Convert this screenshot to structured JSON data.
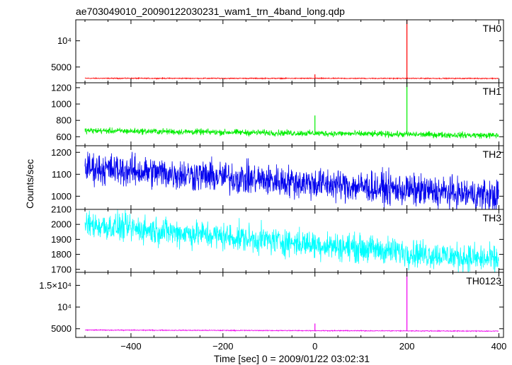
{
  "chart_data": {
    "type": "line",
    "title": "ae703049010_20090122030231_wam1_trn_4band_long.qdp",
    "xlabel": "Time [sec] 0 = 2009/01/22 03:02:31",
    "ylabel": "Counts/sec",
    "xlim": [
      -520,
      410
    ],
    "x_ticks": [
      -400,
      -200,
      0,
      200,
      400
    ],
    "x_tick_labels": [
      "−400",
      "−200",
      "0",
      "200",
      "400"
    ],
    "grid": false,
    "panels": [
      {
        "name": "TH0",
        "color": "#ff0000",
        "ylim": [
          2000,
          14000
        ],
        "y_ticks": [
          5000,
          10000
        ],
        "y_tick_labels": [
          "5000",
          "10⁴"
        ],
        "x_range": [
          -500,
          400
        ],
        "baseline_start": 2850,
        "baseline_end": 2830,
        "noise": 70,
        "spikes": [
          {
            "x": 0,
            "y": 3600
          },
          {
            "x": 200,
            "y": 14000
          }
        ]
      },
      {
        "name": "TH1",
        "color": "#00ee00",
        "ylim": [
          490,
          1260
        ],
        "y_ticks": [
          600,
          800,
          1000,
          1200
        ],
        "y_tick_labels": [
          "600",
          "800",
          "1000",
          "1200"
        ],
        "x_range": [
          -500,
          400
        ],
        "baseline_start": 675,
        "baseline_end": 615,
        "noise": 28,
        "spikes": [
          {
            "x": 0,
            "y": 860
          },
          {
            "x": 200,
            "y": 1260
          }
        ]
      },
      {
        "name": "TH2",
        "color": "#0000ee",
        "ylim": [
          940,
          1230
        ],
        "y_ticks": [
          1000,
          1100,
          1200
        ],
        "y_tick_labels": [
          "1000",
          "1100",
          "1200"
        ],
        "x_range": [
          -500,
          400
        ],
        "baseline_start": 1130,
        "baseline_end": 1000,
        "noise": 55,
        "spikes": []
      },
      {
        "name": "TH3",
        "color": "#00ffff",
        "ylim": [
          1680,
          2100
        ],
        "y_ticks": [
          1700,
          1800,
          1900,
          2000,
          2100
        ],
        "y_tick_labels": [
          "1700",
          "1800",
          "1900",
          "2000",
          "2100"
        ],
        "x_range": [
          -500,
          400
        ],
        "baseline_start": 2000,
        "baseline_end": 1760,
        "noise": 70,
        "spikes": []
      },
      {
        "name": "TH0123",
        "color": "#ee00ee",
        "ylim": [
          3000,
          18000
        ],
        "y_ticks": [
          5000,
          10000,
          15000
        ],
        "y_tick_labels": [
          "5000",
          "10⁴",
          "1.5×10⁴"
        ],
        "x_range": [
          -500,
          400
        ],
        "baseline_start": 4700,
        "baseline_end": 4450,
        "noise": 80,
        "spikes": [
          {
            "x": 0,
            "y": 6200
          },
          {
            "x": 200,
            "y": 18000
          }
        ]
      }
    ]
  }
}
